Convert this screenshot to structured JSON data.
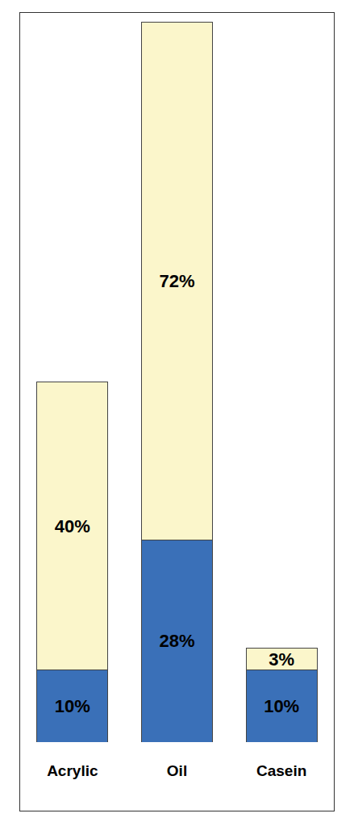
{
  "chart_data": {
    "type": "bar",
    "stacked": true,
    "categories": [
      "Acrylic",
      "Oil",
      "Casein"
    ],
    "series": [
      {
        "color": "#3a70b8",
        "values": [
          10,
          28,
          10
        ],
        "value_labels": [
          "10%",
          "28%",
          "10%"
        ]
      },
      {
        "color": "#fbf6cb",
        "values": [
          40,
          72,
          3
        ],
        "value_labels": [
          "40%",
          "72%",
          "3%"
        ]
      }
    ],
    "ylim": [
      0,
      100
    ],
    "data_labels": true,
    "tick_labels": "x",
    "grid": false
  }
}
